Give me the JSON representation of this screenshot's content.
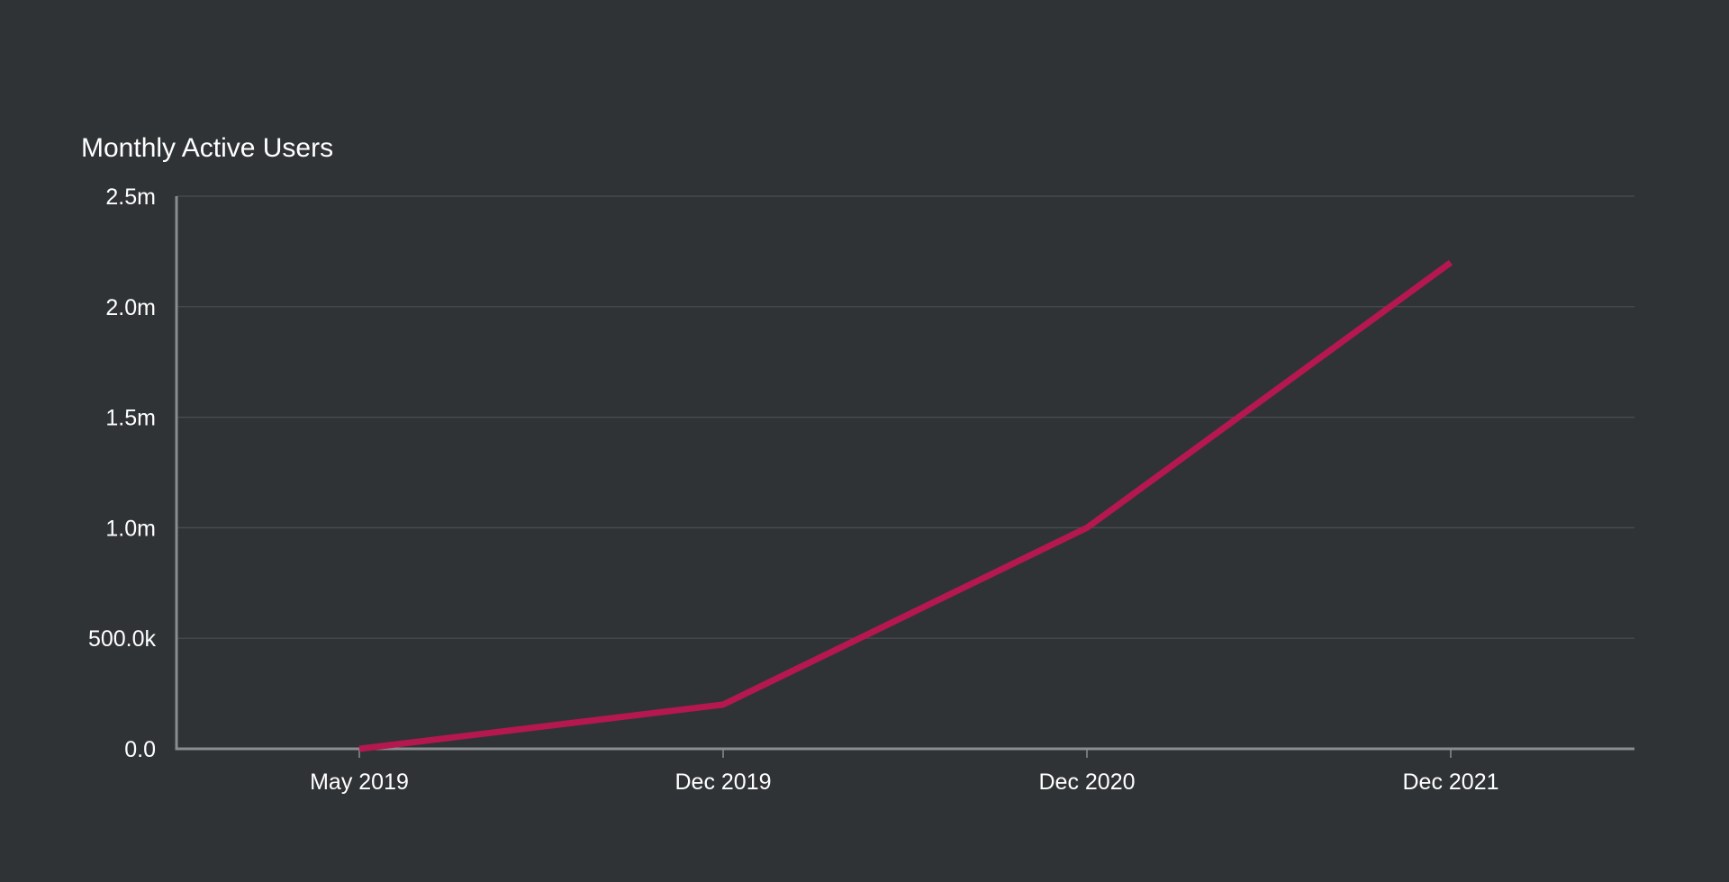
{
  "chart_data": {
    "type": "line",
    "title": "Monthly Active Users",
    "xlabel": "",
    "ylabel": "",
    "x": [
      "May 2019",
      "Dec 2019",
      "Dec 2020",
      "Dec 2021"
    ],
    "series": [
      {
        "values": [
          0,
          200000,
          1000000,
          2200000
        ],
        "color": "#b5174f"
      }
    ],
    "ylim": [
      0,
      2500000
    ],
    "yticks": [
      {
        "value": 0,
        "label": "0.0"
      },
      {
        "value": 500000,
        "label": "500.0k"
      },
      {
        "value": 1000000,
        "label": "1.0m"
      },
      {
        "value": 1500000,
        "label": "1.5m"
      },
      {
        "value": 2000000,
        "label": "2.0m"
      },
      {
        "value": 2500000,
        "label": "2.5m"
      }
    ],
    "grid": true,
    "legend": "none"
  },
  "colors": {
    "background": "#303336",
    "text": "#ffffff",
    "gridline": "#4a4e52",
    "axis": "#8a8d90"
  }
}
